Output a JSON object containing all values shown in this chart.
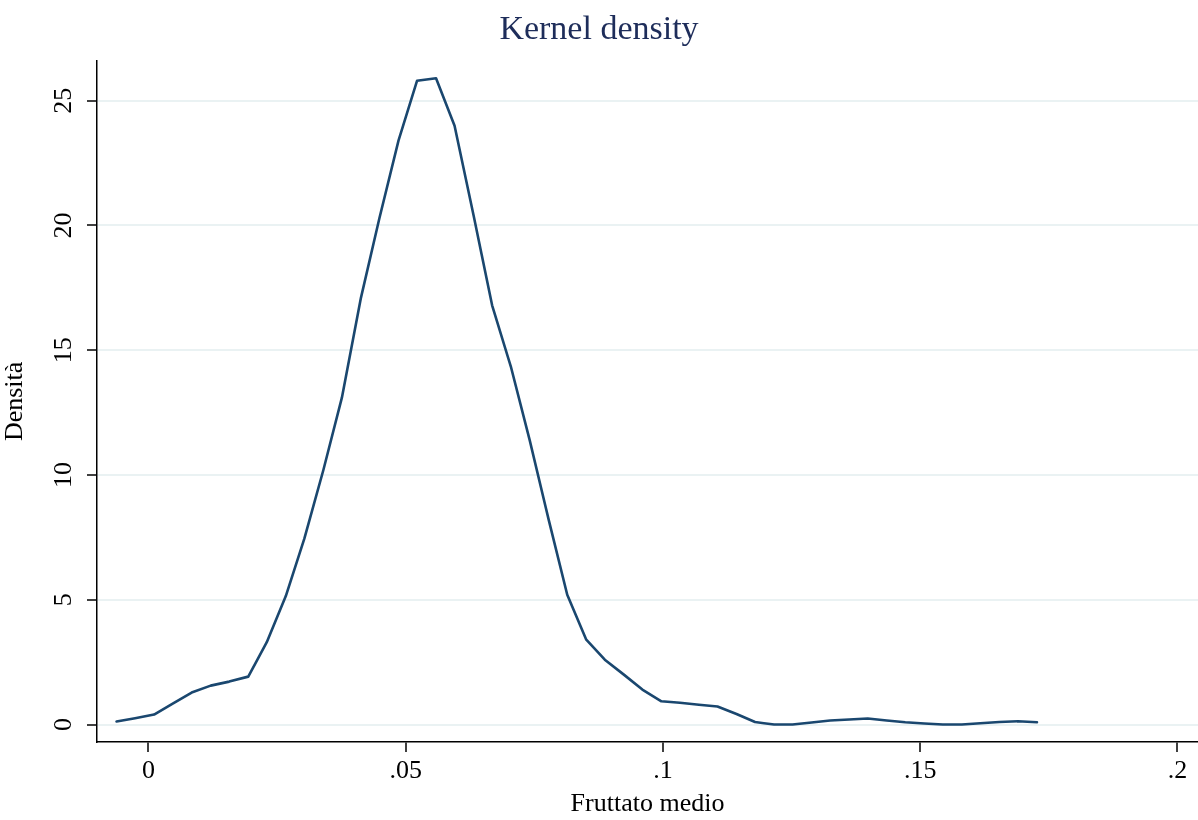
{
  "chart_data": {
    "type": "line",
    "title": "Kernel density",
    "xlabel": "Fruttato medio",
    "ylabel": "Densità",
    "x": [
      -0.0062,
      -0.0026,
      0.0011,
      0.0048,
      0.0084,
      0.0121,
      0.0157,
      0.0194,
      0.023,
      0.0267,
      0.0303,
      0.034,
      0.0376,
      0.0413,
      0.0449,
      0.0486,
      0.0522,
      0.0559,
      0.0595,
      0.0632,
      0.0668,
      0.0705,
      0.0741,
      0.0778,
      0.0814,
      0.0851,
      0.0887,
      0.0924,
      0.096,
      0.0997,
      0.1033,
      0.107,
      0.1106,
      0.1143,
      0.1179,
      0.1216,
      0.1252,
      0.1289,
      0.1325,
      0.1362,
      0.1398,
      0.1435,
      0.1471,
      0.1508,
      0.1544,
      0.1581,
      0.1617,
      0.1654,
      0.169,
      0.1727
    ],
    "series": [
      {
        "color": "#1a476f",
        "values": [
          0.12,
          0.25,
          0.4,
          0.85,
          1.28,
          1.56,
          1.72,
          1.92,
          3.3,
          5.15,
          7.45,
          10.2,
          13.1,
          17.1,
          20.3,
          23.4,
          25.8,
          25.9,
          24.0,
          20.4,
          16.8,
          14.3,
          11.4,
          8.2,
          5.2,
          3.4,
          2.6,
          2.0,
          1.4,
          0.93,
          0.87,
          0.79,
          0.72,
          0.42,
          0.1,
          0.0,
          0.0,
          0.08,
          0.16,
          0.2,
          0.24,
          0.16,
          0.09,
          0.04,
          0.0,
          0.0,
          0.05,
          0.1,
          0.13,
          0.09
        ]
      }
    ],
    "xlim": [
      -0.01,
      0.204
    ],
    "ylim": [
      -0.7,
      26.6
    ],
    "xticks": [
      0,
      {
        "value": 0.05,
        "label": ".05"
      },
      {
        "value": 0.1,
        "label": ".1"
      },
      {
        "value": 0.15,
        "label": ".15"
      },
      {
        "value": 0.2,
        "label": ".2"
      }
    ],
    "yticks": [
      0,
      5,
      10,
      15,
      20,
      25
    ],
    "grid": "y",
    "marker": "none",
    "line_style": "solid"
  }
}
